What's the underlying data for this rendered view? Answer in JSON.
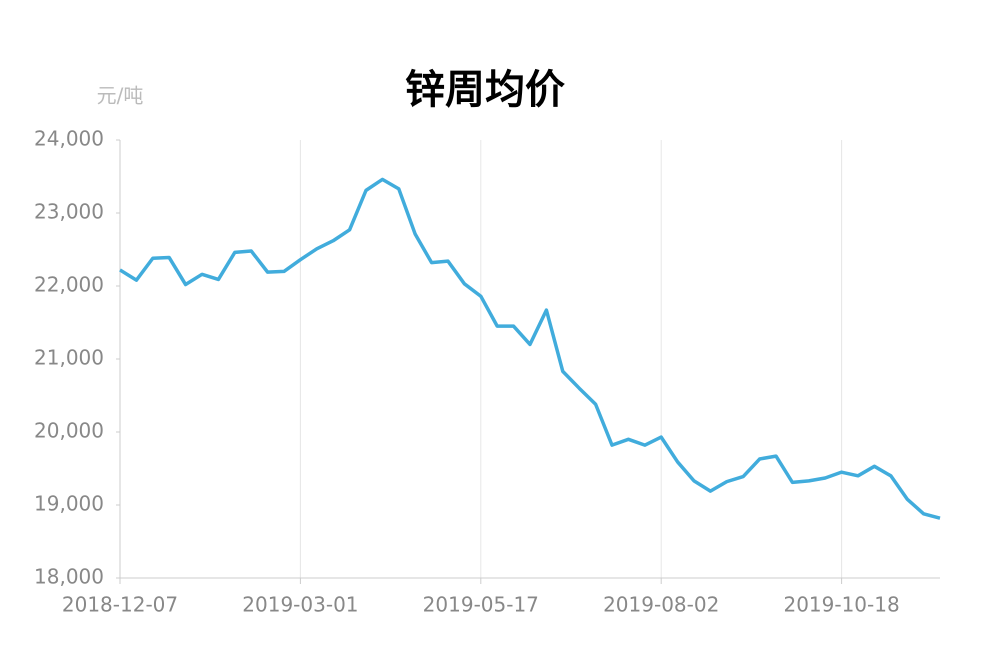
{
  "chart_data": {
    "type": "line",
    "title": "锌周均价",
    "y_label": "元/吨",
    "categories": [
      "2018-12-07",
      null,
      null,
      null,
      null,
      null,
      null,
      null,
      null,
      null,
      null,
      "2019-03-01",
      null,
      null,
      null,
      null,
      null,
      null,
      null,
      null,
      null,
      null,
      "2019-05-17",
      null,
      null,
      null,
      null,
      null,
      null,
      null,
      null,
      null,
      null,
      "2019-08-02",
      null,
      null,
      null,
      null,
      null,
      null,
      null,
      null,
      null,
      null,
      "2019-10-18",
      null,
      null,
      null,
      null,
      null,
      null
    ],
    "series": [
      {
        "name": "锌周均价",
        "color": "#41acdc",
        "values": [
          22220,
          22080,
          22380,
          22390,
          22020,
          22160,
          22090,
          22460,
          22480,
          22190,
          22200,
          22360,
          22510,
          22620,
          22770,
          23310,
          23460,
          23330,
          22710,
          22320,
          22340,
          22030,
          21860,
          21450,
          21450,
          21200,
          21670,
          20830,
          20600,
          20380,
          19820,
          19900,
          19820,
          19930,
          19590,
          19330,
          19190,
          19320,
          19390,
          19630,
          19670,
          19310,
          19330,
          19370,
          19450,
          19400,
          19530,
          19400,
          19080,
          18880,
          18820
        ]
      }
    ],
    "ylim": [
      18000,
      24000
    ],
    "yticks": [
      {
        "value": 18000,
        "label": "18,000"
      },
      {
        "value": 19000,
        "label": "19,000"
      },
      {
        "value": 20000,
        "label": "20,000"
      },
      {
        "value": 21000,
        "label": "21,000"
      },
      {
        "value": 22000,
        "label": "22,000"
      },
      {
        "value": 23000,
        "label": "23,000"
      },
      {
        "value": 24000,
        "label": "24,000"
      }
    ],
    "grid": true
  }
}
